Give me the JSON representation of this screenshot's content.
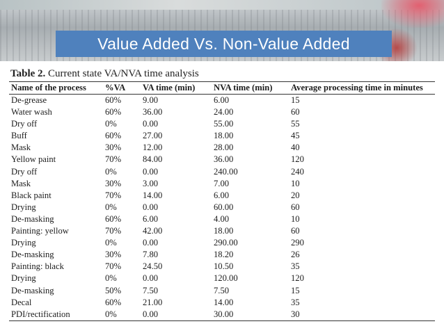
{
  "slide": {
    "title": "Value Added Vs. Non-Value Added"
  },
  "table": {
    "caption_label": "Table 2.",
    "caption_text": "Current state VA/NVA time analysis",
    "headers": [
      "Name of the process",
      "%VA",
      "VA time (min)",
      "NVA time (min)",
      "Average processing time in minutes"
    ],
    "rows": [
      [
        "De-grease",
        "60%",
        "9.00",
        "6.00",
        "15"
      ],
      [
        "Water wash",
        "60%",
        "36.00",
        "24.00",
        "60"
      ],
      [
        "Dry off",
        "0%",
        "0.00",
        "55.00",
        "55"
      ],
      [
        "Buff",
        "60%",
        "27.00",
        "18.00",
        "45"
      ],
      [
        "Mask",
        "30%",
        "12.00",
        "28.00",
        "40"
      ],
      [
        "Yellow paint",
        "70%",
        "84.00",
        "36.00",
        "120"
      ],
      [
        "Dry off",
        "0%",
        "0.00",
        "240.00",
        "240"
      ],
      [
        "Mask",
        "30%",
        "3.00",
        "7.00",
        "10"
      ],
      [
        "Black paint",
        "70%",
        "14.00",
        "6.00",
        "20"
      ],
      [
        "Drying",
        "0%",
        "0.00",
        "60.00",
        "60"
      ],
      [
        "De-masking",
        "60%",
        "6.00",
        "4.00",
        "10"
      ],
      [
        "Painting: yellow",
        "70%",
        "42.00",
        "18.00",
        "60"
      ],
      [
        "Drying",
        "0%",
        "0.00",
        "290.00",
        "290"
      ],
      [
        "De-masking",
        "30%",
        "7.80",
        "18.20",
        "26"
      ],
      [
        "Painting: black",
        "70%",
        "24.50",
        "10.50",
        "35"
      ],
      [
        "Drying",
        "0%",
        "0.00",
        "120.00",
        "120"
      ],
      [
        "De-masking",
        "50%",
        "7.50",
        "7.50",
        "15"
      ],
      [
        "Decal",
        "60%",
        "21.00",
        "14.00",
        "35"
      ],
      [
        "PDI/rectification",
        "0%",
        "0.00",
        "30.00",
        "30"
      ]
    ]
  },
  "colors": {
    "title_bar": "#4f81bd",
    "title_text": "#ffffff"
  }
}
